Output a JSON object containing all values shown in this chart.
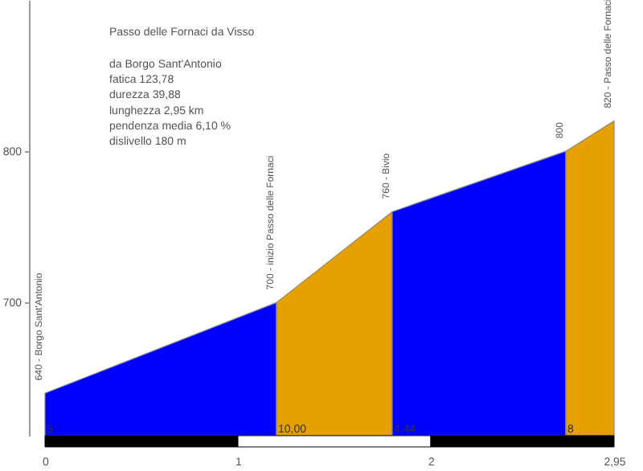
{
  "chart_data": {
    "type": "area",
    "title": "Passo delle Fornaci da Visso",
    "annotations": [
      "da Borgo Sant'Antonio",
      "fatica 123,78",
      "durezza 39,88",
      "lunghezza 2,95 km",
      "pendenza media 6,10 %",
      "dislivello 180 m",
      {
        "text": "640 - Borgo Sant'Antonio",
        "x": 0,
        "y": 640
      },
      {
        "text": "700 - inizio Passo delle Fornaci",
        "x": 1.2,
        "y": 700
      },
      {
        "text": "760 - Bivio",
        "x": 1.8,
        "y": 760
      },
      {
        "text": "800",
        "x": 2.7,
        "y": 800
      },
      {
        "text": "820 - Passo delle Fornaci",
        "x": 2.95,
        "y": 820
      },
      {
        "text": "5",
        "x": 0
      },
      {
        "text": "10,00",
        "x": 1.2
      },
      {
        "text": "4,44",
        "x": 1.8
      },
      {
        "text": "8",
        "x": 2.7
      }
    ],
    "series": [
      {
        "color": "#0000ff",
        "x": [
          0,
          1.2
        ],
        "values": [
          640,
          700
        ]
      },
      {
        "color": "#e6a000",
        "x": [
          1.2,
          1.8
        ],
        "values": [
          700,
          760
        ]
      },
      {
        "color": "#0000ff",
        "x": [
          1.8,
          2.7
        ],
        "values": [
          760,
          800
        ]
      },
      {
        "color": "#e6a000",
        "x": [
          2.7,
          2.95
        ],
        "values": [
          800,
          820
        ]
      }
    ],
    "xlim": [
      0,
      2.95
    ],
    "xticks": [
      0,
      1,
      2,
      {
        "value": 2.95,
        "label": "2,95"
      }
    ],
    "ylim": [
      612,
      900
    ],
    "yticks": [
      700,
      800
    ]
  }
}
